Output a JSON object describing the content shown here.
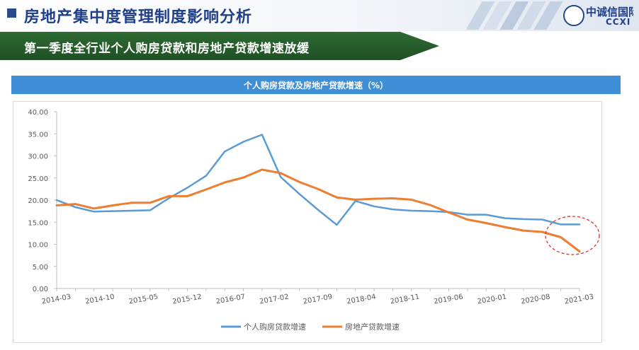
{
  "header": {
    "title": "房地产集中度管理制度影响分析"
  },
  "logo": {
    "name_cn": "中诚信国际",
    "name_en": "CCXI"
  },
  "banner": {
    "text": "第一季度全行业个人购房贷款和房地产贷款增速放缓"
  },
  "colors": {
    "personal": "#5b9bd5",
    "realestate": "#ed7d31",
    "title_bar": "#3f8fd7",
    "banner": "#2e6b33",
    "annotation": "#e03030"
  },
  "chart_data": {
    "type": "line",
    "title": "个人购房贷款及房地产贷款增速（%）",
    "y_ticks": [
      "0.00",
      "5.00",
      "10.00",
      "15.00",
      "20.00",
      "25.00",
      "30.00",
      "35.00",
      "40.00"
    ],
    "ylim": [
      0,
      40
    ],
    "x": [
      "2014-03",
      "2014-06",
      "2014-09",
      "2014-12",
      "2015-03",
      "2015-06",
      "2015-09",
      "2015-12",
      "2016-03",
      "2016-06",
      "2016-09",
      "2016-12",
      "2017-03",
      "2017-06",
      "2017-09",
      "2017-12",
      "2018-03",
      "2018-06",
      "2018-09",
      "2018-12",
      "2019-03",
      "2019-06",
      "2019-09",
      "2019-12",
      "2020-03",
      "2020-06",
      "2020-09",
      "2020-12",
      "2021-03"
    ],
    "x_tick_labels": [
      "2014-03",
      "2014-10",
      "2015-05",
      "2015-12",
      "2016-07",
      "2017-02",
      "2017-09",
      "2018-04",
      "2018-11",
      "2019-06",
      "2020-01",
      "2020-08",
      "2021-03"
    ],
    "legend_position": "bottom",
    "grid": false,
    "series": [
      {
        "name": "个人购房贷款增速",
        "values": [
          20.0,
          18.4,
          17.4,
          17.5,
          17.6,
          17.7,
          20.4,
          22.8,
          25.5,
          31.0,
          33.2,
          34.8,
          25.2,
          21.4,
          17.8,
          14.4,
          19.8,
          18.6,
          17.9,
          17.6,
          17.5,
          17.3,
          16.7,
          16.7,
          15.9,
          15.7,
          15.6,
          14.5,
          14.5
        ]
      },
      {
        "name": "房地产贷款增速",
        "values": [
          18.8,
          19.1,
          18.1,
          18.8,
          19.4,
          19.4,
          20.9,
          20.9,
          22.4,
          24.0,
          25.1,
          26.9,
          26.1,
          24.1,
          22.5,
          20.6,
          20.1,
          20.3,
          20.4,
          20.1,
          18.9,
          17.2,
          15.6,
          14.8,
          13.9,
          13.1,
          12.8,
          11.6,
          8.4
        ]
      }
    ]
  }
}
